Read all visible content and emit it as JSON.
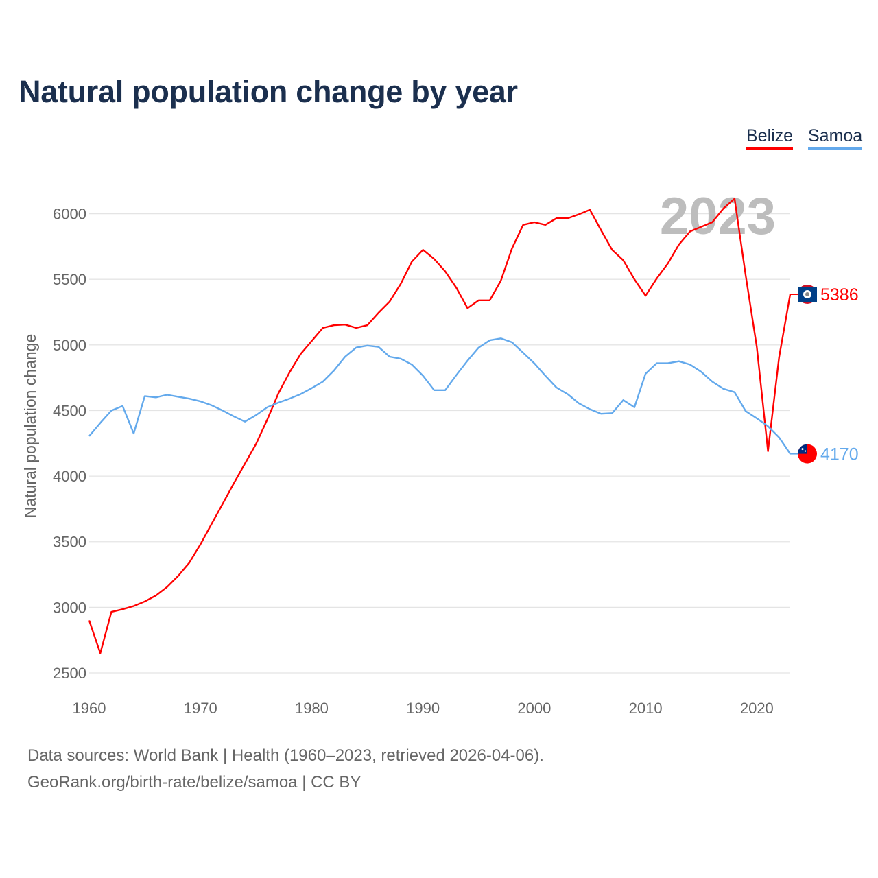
{
  "title": "Natural population change by year",
  "legend": [
    {
      "label": "Belize",
      "color": "#ff0000"
    },
    {
      "label": "Samoa",
      "color": "#63a9ec"
    }
  ],
  "year_watermark": "2023",
  "footer": {
    "source": "Data sources: World Bank | Health (1960–2023, retrieved 2026-04-06).",
    "credit": "GeoRank.org/birth-rate/belize/samoa | CC BY"
  },
  "chart_data": {
    "type": "line",
    "title": "Natural population change by year",
    "xlabel": "",
    "ylabel": "Natural population change",
    "xlim": [
      1960,
      2023
    ],
    "ylim": [
      2500,
      6200
    ],
    "xticks": [
      1960,
      1970,
      1980,
      1990,
      2000,
      2010,
      2020
    ],
    "yticks": [
      2500,
      3000,
      3500,
      4000,
      4500,
      5000,
      5500,
      6000
    ],
    "grid": true,
    "legend_position": "top-right",
    "x_start": 1960,
    "series": [
      {
        "name": "Belize",
        "color": "#ff0000",
        "end_label": "5386",
        "values": [
          2900,
          2650,
          2965,
          2985,
          3010,
          3045,
          3090,
          3155,
          3240,
          3340,
          3480,
          3635,
          3790,
          3945,
          4095,
          4245,
          4430,
          4630,
          4790,
          4930,
          5030,
          5130,
          5150,
          5155,
          5130,
          5150,
          5245,
          5330,
          5465,
          5635,
          5725,
          5655,
          5560,
          5435,
          5280,
          5340,
          5340,
          5490,
          5735,
          5915,
          5935,
          5915,
          5965,
          5965,
          5995,
          6030,
          5875,
          5725,
          5645,
          5500,
          5375,
          5505,
          5620,
          5765,
          5865,
          5900,
          5935,
          6040,
          6115,
          5530,
          4985,
          4190,
          4905,
          5386
        ]
      },
      {
        "name": "Samoa",
        "color": "#63a9ec",
        "end_label": "4170",
        "values": [
          4305,
          4405,
          4500,
          4535,
          4325,
          4610,
          4600,
          4620,
          4605,
          4590,
          4570,
          4540,
          4500,
          4455,
          4415,
          4465,
          4525,
          4560,
          4590,
          4625,
          4670,
          4720,
          4805,
          4910,
          4980,
          4995,
          4985,
          4910,
          4895,
          4850,
          4765,
          4655,
          4655,
          4770,
          4880,
          4980,
          5035,
          5050,
          5020,
          4940,
          4860,
          4765,
          4675,
          4625,
          4555,
          4510,
          4475,
          4480,
          4580,
          4525,
          4780,
          4860,
          4860,
          4875,
          4850,
          4795,
          4720,
          4665,
          4640,
          4495,
          4440,
          4380,
          4295,
          4170
        ]
      }
    ]
  }
}
